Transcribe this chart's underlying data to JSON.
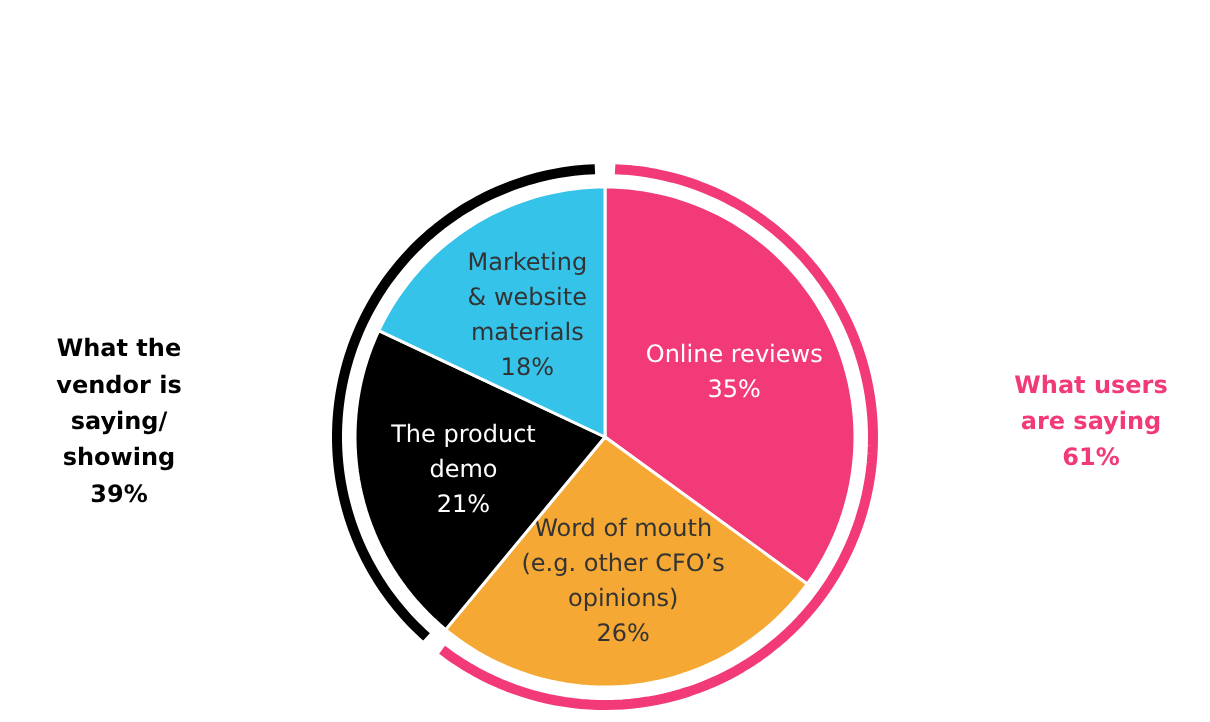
{
  "chart_data": {
    "type": "pie",
    "categories": [
      "Online reviews",
      "Word of mouth\n(e.g. other CFO’s\nopinions)",
      "The product\ndemo",
      "Marketing\n& website\nmaterials"
    ],
    "values": [
      35,
      26,
      21,
      18
    ],
    "value_labels": [
      "35%",
      "26%",
      "21%",
      "18%"
    ],
    "colors": [
      "#f23a78",
      "#f5a833",
      "#000000",
      "#35c3ea"
    ],
    "annotations": [
      "What the\nvendor is\nsaying/\nshowing\n39%",
      "What users\nare saying\n61%"
    ]
  }
}
